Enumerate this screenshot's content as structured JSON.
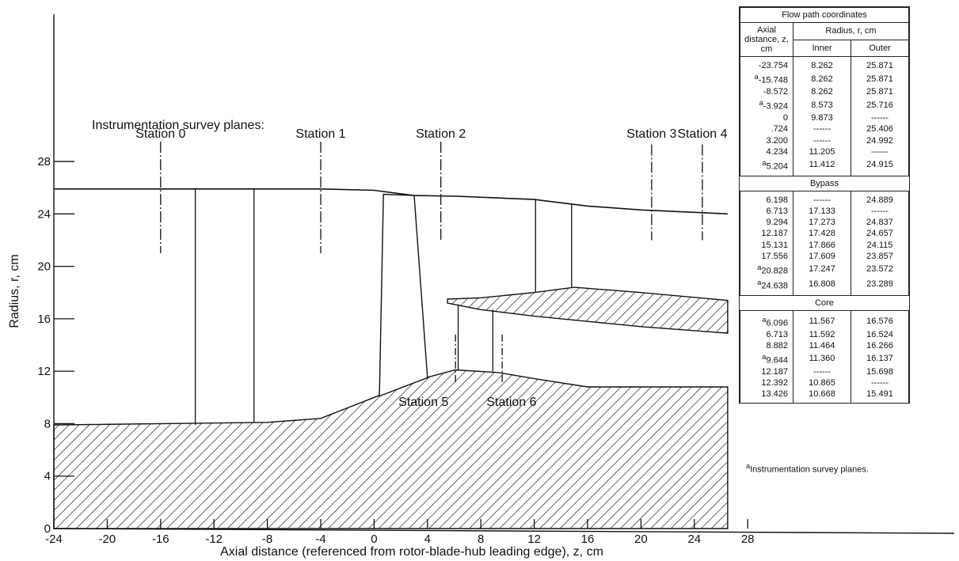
{
  "axes": {
    "xlabel": "Axial distance (referenced from rotor-blade-hub leading edge), z, cm",
    "ylabel": "Radius, r, cm",
    "x_ticks": [
      "-24",
      "-20",
      "-16",
      "-12",
      "-8",
      "-4",
      "0",
      "4",
      "8",
      "12",
      "16",
      "20",
      "24",
      "28"
    ],
    "y_ticks": [
      "0",
      "4",
      "8",
      "12",
      "16",
      "20",
      "24",
      "28"
    ]
  },
  "survey_title": "Instrumentation survey planes:",
  "stations": [
    {
      "label": "Station 0",
      "z": -16.0
    },
    {
      "label": "Station 1",
      "z": -4.0
    },
    {
      "label": "Station 2",
      "z": 5.0
    },
    {
      "label": "Station 3",
      "z": 20.8
    },
    {
      "label": "Station 4",
      "z": 24.6
    },
    {
      "label": "Station 5",
      "z": 6.1
    },
    {
      "label": "Station 6",
      "z": 9.6
    }
  ],
  "geometry": {
    "outer_wall": [
      [
        -24,
        25.9
      ],
      [
        -4,
        25.9
      ],
      [
        0,
        25.8
      ],
      [
        3,
        25.4
      ],
      [
        6.2,
        25.35
      ],
      [
        12,
        25.1
      ],
      [
        16,
        24.6
      ],
      [
        20,
        24.3
      ],
      [
        26.5,
        24.0
      ]
    ],
    "hub": [
      [
        -24,
        7.9
      ],
      [
        -8,
        8.1
      ],
      [
        -4,
        8.4
      ],
      [
        0,
        10.0
      ],
      [
        3.5,
        11.4
      ],
      [
        6.1,
        12.1
      ],
      [
        9.3,
        11.9
      ],
      [
        12.2,
        11.4
      ],
      [
        16,
        10.8
      ],
      [
        20,
        10.8
      ],
      [
        26.5,
        10.8
      ]
    ],
    "splitter_upper": [
      [
        5.5,
        17.5
      ],
      [
        8,
        17.6
      ],
      [
        12,
        18.0
      ],
      [
        15,
        18.4
      ],
      [
        20,
        18.0
      ],
      [
        26.5,
        17.4
      ]
    ],
    "splitter_lower": [
      [
        5.5,
        17.2
      ],
      [
        8,
        16.7
      ],
      [
        12,
        16.2
      ],
      [
        16,
        15.8
      ],
      [
        20,
        15.4
      ],
      [
        26.5,
        14.9
      ]
    ],
    "blades": [
      {
        "from": [
          -13.4,
          7.9
        ],
        "to": [
          -13.4,
          25.9
        ]
      },
      {
        "from": [
          -9,
          8.1
        ],
        "to": [
          -9,
          25.9
        ]
      },
      {
        "from": [
          12.1,
          18.0
        ],
        "to": [
          12.1,
          25.1
        ]
      },
      {
        "from": [
          14.8,
          18.4
        ],
        "to": [
          14.8,
          24.8
        ]
      },
      {
        "from": [
          6.3,
          12.1
        ],
        "to": [
          6.3,
          17.1
        ]
      },
      {
        "from": [
          8.9,
          12.0
        ],
        "to": [
          8.9,
          16.7
        ]
      }
    ],
    "rotor": [
      [
        0.4,
        10.1
      ],
      [
        0.7,
        25.5
      ],
      [
        3.0,
        25.4
      ],
      [
        4.0,
        11.5
      ]
    ]
  },
  "flow_table": {
    "title": "Flow path coordinates",
    "col_z": "Axial distance, z, cm",
    "col_radius": "Radius, r, cm",
    "col_inner": "Inner",
    "col_outer": "Outer",
    "main_rows": [
      {
        "a": "",
        "z": "-23.754",
        "inner": "8.262",
        "outer": "25.871"
      },
      {
        "a": "a",
        "z": "-15.748",
        "inner": "8.262",
        "outer": "25.871"
      },
      {
        "a": "",
        "z": "-8.572",
        "inner": "8.262",
        "outer": "25.871"
      },
      {
        "a": "a",
        "z": "-3.924",
        "inner": "8.573",
        "outer": "25.716"
      },
      {
        "a": "",
        "z": "0",
        "inner": "9.873",
        "outer": "------"
      },
      {
        "a": "",
        "z": ".724",
        "inner": "------",
        "outer": "25.406"
      },
      {
        "a": "",
        "z": "3.200",
        "inner": "------",
        "outer": "24.992"
      },
      {
        "a": "",
        "z": "4.234",
        "inner": "11.205",
        "outer": "------"
      },
      {
        "a": "a",
        "z": "5.204",
        "inner": "11.412",
        "outer": "24.915"
      }
    ],
    "bypass_label": "Bypass",
    "bypass_rows": [
      {
        "a": "",
        "z": "6.198",
        "inner": "------",
        "outer": "24.889"
      },
      {
        "a": "",
        "z": "6.713",
        "inner": "17.133",
        "outer": "------"
      },
      {
        "a": "",
        "z": "9.294",
        "inner": "17.273",
        "outer": "24.837"
      },
      {
        "a": "",
        "z": "12.187",
        "inner": "17.428",
        "outer": "24.657"
      },
      {
        "a": "",
        "z": "15.131",
        "inner": "17.866",
        "outer": "24.115"
      },
      {
        "a": "",
        "z": "17.556",
        "inner": "17.609",
        "outer": "23.857"
      },
      {
        "a": "a",
        "z": "20.828",
        "inner": "17.247",
        "outer": "23.572"
      },
      {
        "a": "a",
        "z": "24.638",
        "inner": "16.808",
        "outer": "23.289"
      }
    ],
    "core_label": "Core",
    "core_rows": [
      {
        "a": "a",
        "z": "6.096",
        "inner": "11.567",
        "outer": "16.576"
      },
      {
        "a": "",
        "z": "6.713",
        "inner": "11.592",
        "outer": "16.524"
      },
      {
        "a": "",
        "z": "8.882",
        "inner": "11.464",
        "outer": "16.266"
      },
      {
        "a": "a",
        "z": "9.644",
        "inner": "11.360",
        "outer": "16.137"
      },
      {
        "a": "",
        "z": "12.187",
        "inner": "------",
        "outer": "15.698"
      },
      {
        "a": "",
        "z": "12.392",
        "inner": "10.865",
        "outer": "------"
      },
      {
        "a": "",
        "z": "13.426",
        "inner": "10.668",
        "outer": "15.491"
      }
    ],
    "footnote_mark": "a",
    "footnote": "Instrumentation survey planes."
  }
}
